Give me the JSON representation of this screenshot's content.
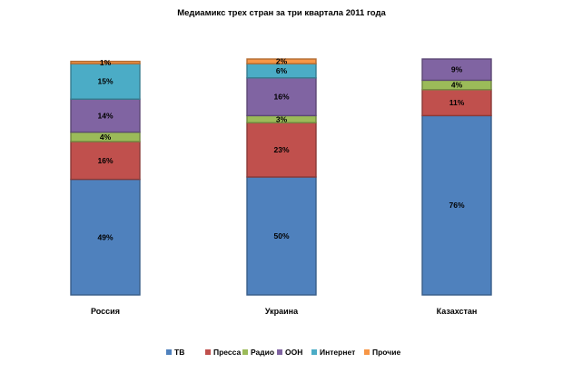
{
  "chart_data": {
    "type": "bar",
    "stacked": true,
    "title": "Медиамикс трех стран за три квартала 2011 года",
    "categories": [
      "Россия",
      "Украина",
      "Казахстан"
    ],
    "series": [
      {
        "name": "ТВ",
        "color": "#4F81BD",
        "values": [
          49,
          50,
          76
        ],
        "labels": [
          "49%",
          "50%",
          "76%"
        ]
      },
      {
        "name": "Пресса",
        "color": "#C0504D",
        "values": [
          16,
          23,
          11
        ],
        "labels": [
          "16%",
          "23%",
          "11%"
        ]
      },
      {
        "name": "Радио",
        "color": "#9BBB59",
        "values": [
          4,
          3,
          4
        ],
        "labels": [
          "4%",
          "3%",
          "4%"
        ]
      },
      {
        "name": "ООН",
        "color": "#8064A2",
        "values": [
          14,
          16,
          9
        ],
        "labels": [
          "14%",
          "16%",
          "9%"
        ]
      },
      {
        "name": "Интернет",
        "color": "#4BACC6",
        "values": [
          15,
          6,
          0
        ],
        "labels": [
          "15%",
          "6%",
          ""
        ]
      },
      {
        "name": "Прочие",
        "color": "#F79646",
        "values": [
          1,
          2,
          0
        ],
        "labels": [
          "1%",
          "2%",
          ""
        ]
      }
    ],
    "ylim": [
      0,
      100
    ],
    "grid": false,
    "legend_position": "bottom"
  }
}
